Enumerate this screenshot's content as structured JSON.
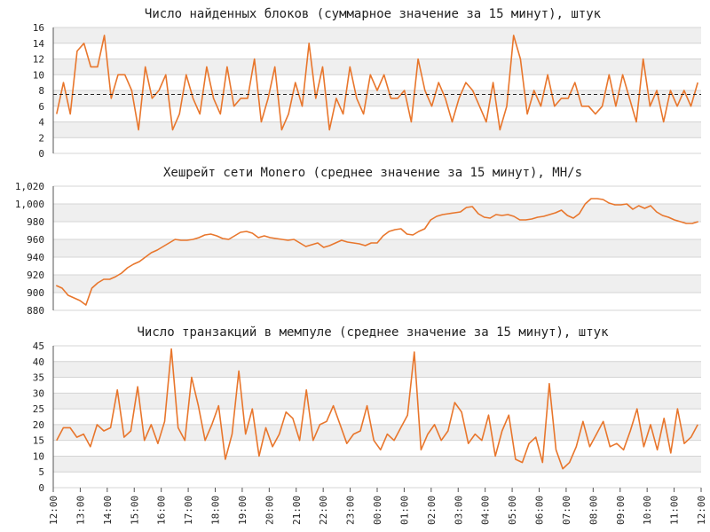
{
  "theme": {
    "line_color": "#e8762c",
    "band_color": "#efefef",
    "grid_color": "#d4d4d4",
    "axis_color": "#555555",
    "text_color": "#222222",
    "reference_line_color": "#222222"
  },
  "x_axis": {
    "ticks": [
      "12:00",
      "13:00",
      "14:00",
      "15:00",
      "16:00",
      "17:00",
      "18:00",
      "19:00",
      "20:00",
      "21:00",
      "22:00",
      "23:00",
      "00:00",
      "01:00",
      "02:00",
      "03:00",
      "04:00",
      "05:00",
      "06:00",
      "07:00",
      "08:00",
      "09:00",
      "10:00",
      "11:00",
      "12:00"
    ]
  },
  "chart_data": [
    {
      "type": "line",
      "title": "Число найденных блоков (суммарное значение за 15 минут), штук",
      "ylim": [
        0,
        16
      ],
      "yticks": [
        0,
        2,
        4,
        6,
        8,
        10,
        12,
        14,
        16
      ],
      "ytick_labels": [
        "0",
        "2",
        "4",
        "6",
        "8",
        "10",
        "12",
        "14",
        "16"
      ],
      "reference_line": 7.5,
      "grid": true,
      "values": [
        5,
        9,
        5,
        13,
        14,
        11,
        11,
        15,
        7,
        10,
        10,
        8,
        3,
        11,
        7,
        8,
        10,
        3,
        5,
        10,
        7,
        5,
        11,
        7,
        5,
        11,
        6,
        7,
        7,
        12,
        4,
        7,
        11,
        3,
        5,
        9,
        6,
        14,
        7,
        11,
        3,
        7,
        5,
        11,
        7,
        5,
        10,
        8,
        10,
        7,
        7,
        8,
        4,
        12,
        8,
        6,
        9,
        7,
        4,
        7,
        9,
        8,
        6,
        4,
        9,
        3,
        6,
        15,
        12,
        5,
        8,
        6,
        10,
        6,
        7,
        7,
        9,
        6,
        6,
        5,
        6,
        10,
        6,
        10,
        7,
        4,
        12,
        6,
        8,
        4,
        8,
        6,
        8,
        6,
        9
      ]
    },
    {
      "type": "line",
      "title": "Хешрейт сети Monero (среднее значение за 15 минут), MH/s",
      "ylim": [
        880,
        1020
      ],
      "yticks": [
        880,
        900,
        920,
        940,
        960,
        980,
        1000,
        1020
      ],
      "ytick_labels": [
        "880",
        "900",
        "920",
        "940",
        "960",
        "980",
        "1,000",
        "1,020"
      ],
      "grid": true,
      "values": [
        908,
        905,
        897,
        894,
        891,
        886,
        905,
        911,
        915,
        915,
        918,
        922,
        928,
        932,
        935,
        940,
        945,
        948,
        952,
        956,
        960,
        959,
        959,
        960,
        962,
        965,
        966,
        964,
        961,
        960,
        964,
        968,
        969,
        967,
        962,
        964,
        962,
        961,
        960,
        959,
        960,
        956,
        952,
        954,
        956,
        951,
        953,
        956,
        959,
        957,
        956,
        955,
        953,
        956,
        956,
        964,
        969,
        971,
        972,
        966,
        965,
        969,
        972,
        982,
        986,
        988,
        989,
        990,
        991,
        996,
        997,
        989,
        985,
        984,
        988,
        987,
        988,
        986,
        982,
        982,
        983,
        985,
        986,
        988,
        990,
        993,
        987,
        984,
        989,
        1000,
        1006,
        1006,
        1005,
        1001,
        999,
        999,
        1000,
        994,
        998,
        995,
        998,
        991,
        987,
        985,
        982,
        980,
        978,
        978,
        980
      ]
    },
    {
      "type": "line",
      "title": "Число транзакций в мемпуле (среднее значение за 15 минут), штук",
      "ylim": [
        0,
        45
      ],
      "yticks": [
        0,
        5,
        10,
        15,
        20,
        25,
        30,
        35,
        40,
        45
      ],
      "ytick_labels": [
        "0",
        "5",
        "10",
        "15",
        "20",
        "25",
        "30",
        "35",
        "40",
        "45"
      ],
      "grid": true,
      "values": [
        15,
        19,
        19,
        16,
        17,
        13,
        20,
        18,
        19,
        31,
        16,
        18,
        32,
        15,
        20,
        14,
        21,
        44,
        19,
        15,
        35,
        26,
        15,
        20,
        26,
        9,
        17,
        37,
        17,
        25,
        10,
        19,
        13,
        17,
        24,
        22,
        15,
        31,
        15,
        20,
        21,
        26,
        20,
        14,
        17,
        18,
        26,
        15,
        12,
        17,
        15,
        19,
        23,
        43,
        12,
        17,
        20,
        15,
        18,
        27,
        24,
        14,
        17,
        15,
        23,
        10,
        18,
        23,
        9,
        8,
        14,
        16,
        8,
        33,
        12,
        6,
        8,
        13,
        21,
        13,
        17,
        21,
        13,
        14,
        12,
        18,
        25,
        13,
        20,
        12,
        22,
        11,
        25,
        14,
        16,
        20
      ]
    }
  ]
}
